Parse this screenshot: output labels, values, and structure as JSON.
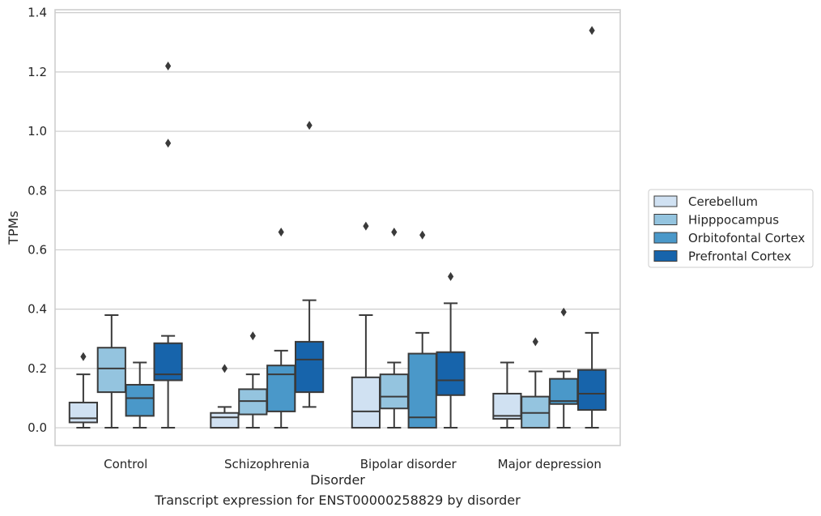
{
  "caption": "Transcript expression for ENST00000258829 by disorder",
  "colors": {
    "Cerebellum": "#d0e1f2",
    "Hipppocampus": "#94c4df",
    "Orbitofontal Cortex": "#4a98c9",
    "Prefrontal Cortex": "#1764ab",
    "box_edge": "#3a3a3a",
    "grid": "#cccccc",
    "frame": "#cccccc"
  },
  "chart_data": {
    "type": "box",
    "xlabel": "Disorder",
    "ylabel": "TPMs",
    "ylim": [
      -0.06,
      1.41
    ],
    "yticks": [
      0.0,
      0.2,
      0.4,
      0.6,
      0.8,
      1.0,
      1.2,
      1.4
    ],
    "ytick_labels": [
      "0.0",
      "0.2",
      "0.4",
      "0.6",
      "0.8",
      "1.0",
      "1.2",
      "1.4"
    ],
    "grid": true,
    "legend_position": "right",
    "categories": [
      "Control",
      "Schizophrenia",
      "Bipolar disorder",
      "Major depression"
    ],
    "series": [
      {
        "name": "Cerebellum",
        "boxes": [
          {
            "whislo": 0.0,
            "q1": 0.018,
            "med": 0.032,
            "q3": 0.085,
            "whishi": 0.18,
            "fliers": [
              0.24
            ]
          },
          {
            "whislo": 0.0,
            "q1": 0.0,
            "med": 0.035,
            "q3": 0.05,
            "whishi": 0.07,
            "fliers": [
              0.2
            ]
          },
          {
            "whislo": 0.0,
            "q1": 0.0,
            "med": 0.055,
            "q3": 0.17,
            "whishi": 0.38,
            "fliers": [
              0.68
            ]
          },
          {
            "whislo": 0.0,
            "q1": 0.03,
            "med": 0.04,
            "q3": 0.115,
            "whishi": 0.22,
            "fliers": []
          }
        ]
      },
      {
        "name": "Hipppocampus",
        "boxes": [
          {
            "whislo": 0.0,
            "q1": 0.12,
            "med": 0.2,
            "q3": 0.27,
            "whishi": 0.38,
            "fliers": []
          },
          {
            "whislo": 0.0,
            "q1": 0.045,
            "med": 0.09,
            "q3": 0.13,
            "whishi": 0.18,
            "fliers": [
              0.31
            ]
          },
          {
            "whislo": 0.0,
            "q1": 0.065,
            "med": 0.105,
            "q3": 0.18,
            "whishi": 0.22,
            "fliers": [
              0.66
            ]
          },
          {
            "whislo": 0.0,
            "q1": 0.0,
            "med": 0.05,
            "q3": 0.105,
            "whishi": 0.19,
            "fliers": [
              0.29
            ]
          }
        ]
      },
      {
        "name": "Orbitofontal Cortex",
        "boxes": [
          {
            "whislo": 0.0,
            "q1": 0.04,
            "med": 0.1,
            "q3": 0.145,
            "whishi": 0.22,
            "fliers": []
          },
          {
            "whislo": 0.0,
            "q1": 0.055,
            "med": 0.18,
            "q3": 0.21,
            "whishi": 0.26,
            "fliers": [
              0.66
            ]
          },
          {
            "whislo": 0.0,
            "q1": 0.0,
            "med": 0.035,
            "q3": 0.25,
            "whishi": 0.32,
            "fliers": [
              0.65
            ]
          },
          {
            "whislo": 0.0,
            "q1": 0.08,
            "med": 0.09,
            "q3": 0.165,
            "whishi": 0.19,
            "fliers": [
              0.39
            ]
          }
        ]
      },
      {
        "name": "Prefrontal Cortex",
        "boxes": [
          {
            "whislo": 0.0,
            "q1": 0.16,
            "med": 0.18,
            "q3": 0.285,
            "whishi": 0.31,
            "fliers": [
              0.96,
              1.22
            ]
          },
          {
            "whislo": 0.07,
            "q1": 0.12,
            "med": 0.23,
            "q3": 0.29,
            "whishi": 0.43,
            "fliers": [
              1.02
            ]
          },
          {
            "whislo": 0.0,
            "q1": 0.11,
            "med": 0.16,
            "q3": 0.255,
            "whishi": 0.42,
            "fliers": [
              0.51
            ]
          },
          {
            "whislo": 0.0,
            "q1": 0.06,
            "med": 0.115,
            "q3": 0.195,
            "whishi": 0.32,
            "fliers": [
              1.34
            ]
          }
        ]
      }
    ]
  }
}
